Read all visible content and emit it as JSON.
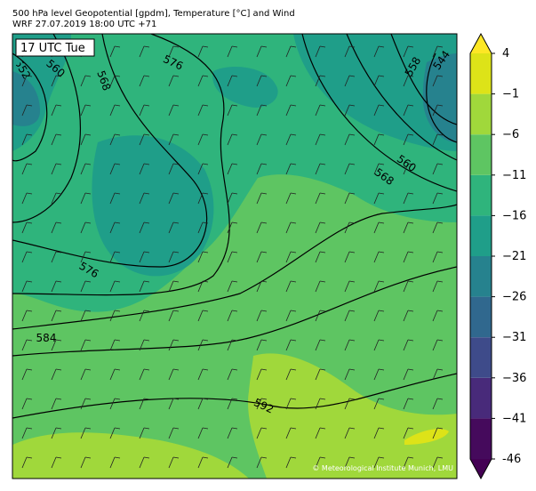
{
  "header": {
    "title": "500 hPa level Geopotential [gpdm], Temperature [°C] and Wind",
    "subtitle": "WRF 27.07.2019 18:00 UTC +71"
  },
  "map": {
    "time_label": "17 UTC Tue",
    "contour_labels": [
      "552",
      "560",
      "568",
      "576",
      "558",
      "544",
      "560",
      "568",
      "576",
      "584",
      "592"
    ],
    "credit": "© Meteorological Institute Munich, LMU"
  },
  "colorbar": {
    "vlim": [
      -46,
      4
    ],
    "ticks": [
      -46,
      {
        "value": -41,
        "label": "−41"
      },
      {
        "value": -36,
        "label": "−36"
      },
      {
        "value": -31,
        "label": "−31"
      },
      {
        "value": -26,
        "label": "−26"
      },
      {
        "value": -21,
        "label": "−21"
      },
      {
        "value": -16,
        "label": "−16"
      },
      {
        "value": -11,
        "label": "−11"
      },
      {
        "value": -6,
        "label": "−6"
      },
      {
        "value": -1,
        "label": "−1"
      },
      4
    ],
    "colors": [
      "#450a5c",
      "#482a7a",
      "#3e4b8a",
      "#30688e",
      "#26828e",
      "#1f9e89",
      "#2fb47c",
      "#5ec562",
      "#a0d83b",
      "#dde318"
    ],
    "under_color": "#440154",
    "over_color": "#fde725"
  }
}
